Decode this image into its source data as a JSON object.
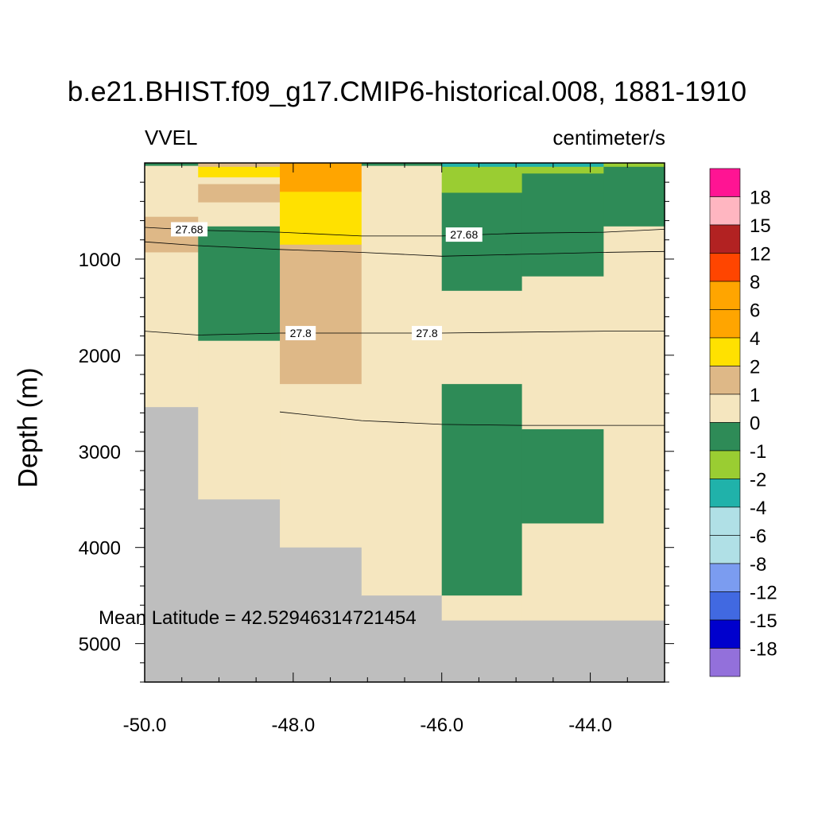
{
  "chart_data": {
    "type": "heatmap",
    "title": "b.e21.BHIST.f09_g17.CMIP6-historical.008, 1881-1910",
    "variable": "VVEL",
    "units": "centimeter/s",
    "xlabel": "",
    "ylabel": "Depth (m)",
    "xlim": [
      -50.0,
      -43.0
    ],
    "ylim": [
      0,
      5400
    ],
    "x_ticks": [
      "-50.0",
      "-48.0",
      "-46.0",
      "-44.0"
    ],
    "y_ticks": [
      "1000",
      "2000",
      "3000",
      "4000",
      "5000"
    ],
    "annotation": "Mean Latitude = 42.52946314721454",
    "x_columns": [
      -50.0,
      -49.28,
      -48.18,
      -47.08,
      -46.0,
      -44.92,
      -43.82,
      -43.0
    ],
    "cells": [
      {
        "x": [
          -50.0,
          -49.28
        ],
        "depth": [
          0,
          30
        ],
        "category": "-1"
      },
      {
        "x": [
          -50.0,
          -49.28
        ],
        "depth": [
          30,
          560
        ],
        "category": "0"
      },
      {
        "x": [
          -50.0,
          -49.28
        ],
        "depth": [
          560,
          930
        ],
        "category": "1"
      },
      {
        "x": [
          -50.0,
          -49.28
        ],
        "depth": [
          930,
          2540
        ],
        "category": "0"
      },
      {
        "x": [
          -50.0,
          -49.28
        ],
        "depth": [
          2540,
          5400
        ],
        "category": "land"
      },
      {
        "x": [
          -49.28,
          -48.18
        ],
        "depth": [
          0,
          40
        ],
        "category": "1"
      },
      {
        "x": [
          -49.28,
          -48.18
        ],
        "depth": [
          40,
          150
        ],
        "category": "2"
      },
      {
        "x": [
          -49.28,
          -48.18
        ],
        "depth": [
          150,
          220
        ],
        "category": "0"
      },
      {
        "x": [
          -49.28,
          -48.18
        ],
        "depth": [
          220,
          410
        ],
        "category": "1"
      },
      {
        "x": [
          -49.28,
          -48.18
        ],
        "depth": [
          410,
          660
        ],
        "category": "0"
      },
      {
        "x": [
          -49.28,
          -48.18
        ],
        "depth": [
          660,
          1850
        ],
        "category": "-1"
      },
      {
        "x": [
          -49.28,
          -48.18
        ],
        "depth": [
          1850,
          3500
        ],
        "category": "0"
      },
      {
        "x": [
          -49.28,
          -48.18
        ],
        "depth": [
          3500,
          5400
        ],
        "category": "land"
      },
      {
        "x": [
          -48.18,
          -47.08
        ],
        "depth": [
          0,
          300
        ],
        "category": "4"
      },
      {
        "x": [
          -48.18,
          -47.08
        ],
        "depth": [
          300,
          850
        ],
        "category": "2"
      },
      {
        "x": [
          -48.18,
          -47.08
        ],
        "depth": [
          850,
          2300
        ],
        "category": "1"
      },
      {
        "x": [
          -48.18,
          -47.08
        ],
        "depth": [
          2300,
          4000
        ],
        "category": "0"
      },
      {
        "x": [
          -48.18,
          -47.08
        ],
        "depth": [
          4000,
          5400
        ],
        "category": "land"
      },
      {
        "x": [
          -47.08,
          -46.0
        ],
        "depth": [
          0,
          30
        ],
        "category": "-1"
      },
      {
        "x": [
          -47.08,
          -46.0
        ],
        "depth": [
          30,
          4500
        ],
        "category": "0"
      },
      {
        "x": [
          -47.08,
          -46.0
        ],
        "depth": [
          4500,
          5400
        ],
        "category": "land"
      },
      {
        "x": [
          -46.0,
          -44.92
        ],
        "depth": [
          0,
          40
        ],
        "category": "-4"
      },
      {
        "x": [
          -46.0,
          -44.92
        ],
        "depth": [
          40,
          310
        ],
        "category": "-2"
      },
      {
        "x": [
          -46.0,
          -44.92
        ],
        "depth": [
          310,
          1330
        ],
        "category": "-1"
      },
      {
        "x": [
          -46.0,
          -44.92
        ],
        "depth": [
          1330,
          2300
        ],
        "category": "0"
      },
      {
        "x": [
          -46.0,
          -44.92
        ],
        "depth": [
          2300,
          4500
        ],
        "category": "-1"
      },
      {
        "x": [
          -46.0,
          -44.92
        ],
        "depth": [
          4500,
          4760
        ],
        "category": "0"
      },
      {
        "x": [
          -46.0,
          -44.92
        ],
        "depth": [
          4760,
          5400
        ],
        "category": "land"
      },
      {
        "x": [
          -44.92,
          -43.82
        ],
        "depth": [
          0,
          40
        ],
        "category": "-4"
      },
      {
        "x": [
          -44.92,
          -43.82
        ],
        "depth": [
          40,
          110
        ],
        "category": "-2"
      },
      {
        "x": [
          -44.92,
          -43.82
        ],
        "depth": [
          110,
          1180
        ],
        "category": "-1"
      },
      {
        "x": [
          -44.92,
          -43.82
        ],
        "depth": [
          1180,
          2770
        ],
        "category": "0"
      },
      {
        "x": [
          -44.92,
          -43.82
        ],
        "depth": [
          2770,
          3750
        ],
        "category": "-1"
      },
      {
        "x": [
          -44.92,
          -43.82
        ],
        "depth": [
          3750,
          4760
        ],
        "category": "0"
      },
      {
        "x": [
          -44.92,
          -43.82
        ],
        "depth": [
          4760,
          5400
        ],
        "category": "land"
      },
      {
        "x": [
          -43.82,
          -43.0
        ],
        "depth": [
          0,
          40
        ],
        "category": "-2"
      },
      {
        "x": [
          -43.82,
          -43.0
        ],
        "depth": [
          40,
          660
        ],
        "category": "-1"
      },
      {
        "x": [
          -43.82,
          -43.0
        ],
        "depth": [
          660,
          4760
        ],
        "category": "0"
      },
      {
        "x": [
          -43.82,
          -43.0
        ],
        "depth": [
          4760,
          5400
        ],
        "category": "land"
      }
    ],
    "contours": [
      {
        "level": "27.68",
        "points": [
          [
            -50.0,
            670
          ],
          [
            -49.28,
            700
          ],
          [
            -48.18,
            720
          ],
          [
            -47.08,
            760
          ],
          [
            -46.0,
            760
          ],
          [
            -44.92,
            730
          ],
          [
            -43.82,
            720
          ],
          [
            -43.0,
            690
          ]
        ],
        "labels": [
          [
            -49.4,
            690
          ],
          [
            -45.7,
            745
          ]
        ]
      },
      {
        "level": "",
        "points": [
          [
            -50.0,
            820
          ],
          [
            -49.28,
            860
          ],
          [
            -48.18,
            900
          ],
          [
            -47.08,
            930
          ],
          [
            -46.0,
            970
          ],
          [
            -44.92,
            950
          ],
          [
            -43.82,
            930
          ],
          [
            -43.0,
            920
          ]
        ],
        "labels": []
      },
      {
        "level": "27.8",
        "points": [
          [
            -50.0,
            1750
          ],
          [
            -49.28,
            1790
          ],
          [
            -48.18,
            1770
          ],
          [
            -47.08,
            1770
          ],
          [
            -46.0,
            1770
          ],
          [
            -44.92,
            1760
          ],
          [
            -43.82,
            1750
          ],
          [
            -43.0,
            1750
          ]
        ],
        "labels": [
          [
            -47.9,
            1770
          ],
          [
            -46.2,
            1770
          ]
        ]
      },
      {
        "level": "",
        "points": [
          [
            -48.18,
            2590
          ],
          [
            -47.08,
            2680
          ],
          [
            -46.0,
            2720
          ],
          [
            -44.92,
            2730
          ],
          [
            -43.82,
            2730
          ],
          [
            -43.0,
            2730
          ]
        ],
        "labels": []
      }
    ],
    "colorbar": {
      "labels": [
        "18",
        "15",
        "12",
        "8",
        "6",
        "4",
        "2",
        "1",
        "0",
        "-1",
        "-2",
        "-4",
        "-6",
        "-8",
        "-12",
        "-15",
        "-18"
      ],
      "colors": [
        "#ff1493",
        "#ffb6c1",
        "#b22222",
        "#ff4500",
        "#ffa500",
        "#ffa500",
        "#ffe100",
        "#deb887",
        "#f5e6bf",
        "#2e8b57",
        "#9acd32",
        "#20b2aa",
        "#b0e0e6",
        "#b0e0e6",
        "#7b9cf0",
        "#4169e1",
        "#0000cd",
        "#9370db"
      ]
    },
    "category_colors": {
      "4": "#ffa500",
      "2": "#ffe100",
      "1": "#deb887",
      "0": "#f5e6bf",
      "-1": "#2e8b57",
      "-2": "#9acd32",
      "-4": "#20b2aa",
      "land": "#bebebe"
    }
  }
}
